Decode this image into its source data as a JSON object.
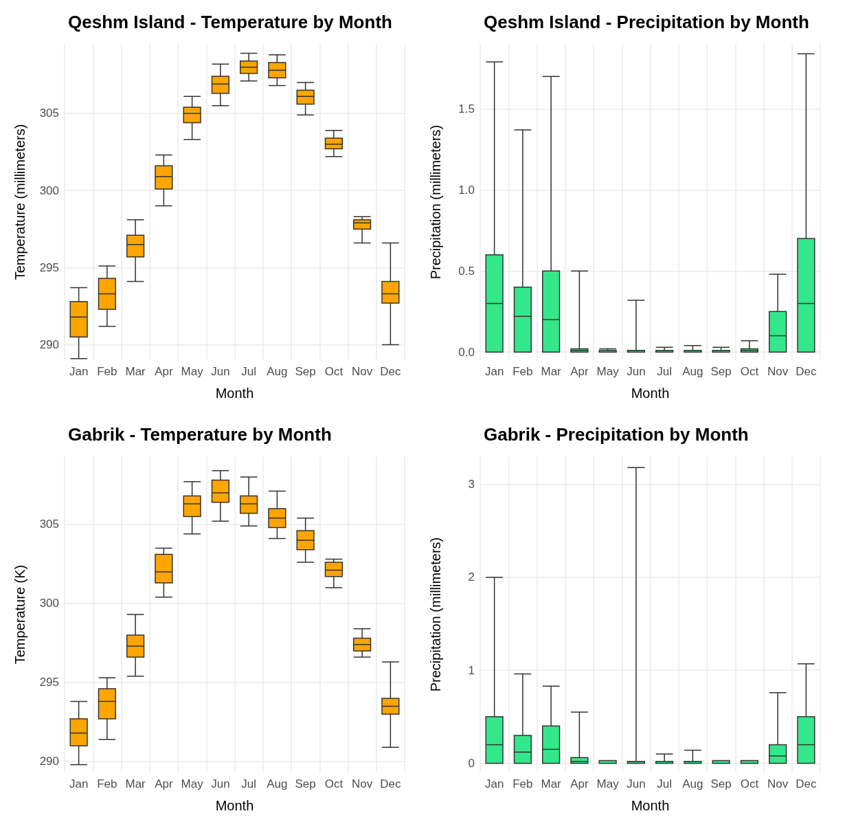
{
  "chart_data": [
    {
      "type": "box",
      "title": "Qeshm Island - Temperature by Month",
      "xlabel": "Month",
      "ylabel": "Temperature (millimeters)",
      "categories": [
        "Jan",
        "Feb",
        "Mar",
        "Apr",
        "May",
        "Jun",
        "Jul",
        "Aug",
        "Sep",
        "Oct",
        "Nov",
        "Dec"
      ],
      "color": "#ffa500",
      "ylim": [
        289,
        309.5
      ],
      "yticks": [
        290,
        295,
        300,
        305
      ],
      "grid": true,
      "legend": false,
      "boxes": [
        {
          "low": 289.1,
          "q1": 290.5,
          "median": 291.8,
          "q3": 292.8,
          "high": 293.7
        },
        {
          "low": 291.2,
          "q1": 292.3,
          "median": 293.3,
          "q3": 294.3,
          "high": 295.1
        },
        {
          "low": 294.1,
          "q1": 295.7,
          "median": 296.5,
          "q3": 297.1,
          "high": 298.1
        },
        {
          "low": 299,
          "q1": 300.1,
          "median": 300.9,
          "q3": 301.6,
          "high": 302.3
        },
        {
          "low": 303.3,
          "q1": 304.4,
          "median": 305,
          "q3": 305.4,
          "high": 306.1
        },
        {
          "low": 305.5,
          "q1": 306.3,
          "median": 306.9,
          "q3": 307.4,
          "high": 308.2
        },
        {
          "low": 307.1,
          "q1": 307.6,
          "median": 308,
          "q3": 308.4,
          "high": 308.9
        },
        {
          "low": 306.8,
          "q1": 307.3,
          "median": 307.8,
          "q3": 308.3,
          "high": 308.8
        },
        {
          "low": 304.9,
          "q1": 305.6,
          "median": 306.1,
          "q3": 306.5,
          "high": 307
        },
        {
          "low": 302.2,
          "q1": 302.7,
          "median": 303,
          "q3": 303.4,
          "high": 303.9
        },
        {
          "low": 296.6,
          "q1": 297.5,
          "median": 297.9,
          "q3": 298.1,
          "high": 298.3
        },
        {
          "low": 290,
          "q1": 292.7,
          "median": 293.3,
          "q3": 294.1,
          "high": 296.6
        }
      ]
    },
    {
      "type": "box",
      "title": "Qeshm Island - Precipitation by Month",
      "xlabel": "Month",
      "ylabel": "Precipitation (millimeters)",
      "categories": [
        "Jan",
        "Feb",
        "Mar",
        "Apr",
        "May",
        "Jun",
        "Jul",
        "Aug",
        "Sep",
        "Oct",
        "Nov",
        "Dec"
      ],
      "color": "#33e88a",
      "ylim": [
        -0.05,
        1.9
      ],
      "yticks": [
        {
          "value": 0,
          "label": "0.0"
        },
        0.5,
        {
          "value": 1,
          "label": "1.0"
        },
        1.5
      ],
      "grid": true,
      "legend": false,
      "boxes": [
        {
          "low": 0,
          "q1": 0,
          "median": 0.3,
          "q3": 0.6,
          "high": 1.79
        },
        {
          "low": 0,
          "q1": 0,
          "median": 0.22,
          "q3": 0.4,
          "high": 1.37
        },
        {
          "low": 0,
          "q1": 0,
          "median": 0.2,
          "q3": 0.5,
          "high": 1.7
        },
        {
          "low": 0,
          "q1": 0,
          "median": 0.01,
          "q3": 0.02,
          "high": 0.5
        },
        {
          "low": 0,
          "q1": 0,
          "median": 0,
          "q3": 0.01,
          "high": 0.02
        },
        {
          "low": 0,
          "q1": 0,
          "median": 0,
          "q3": 0.01,
          "high": 0.32
        },
        {
          "low": 0,
          "q1": 0,
          "median": 0,
          "q3": 0.01,
          "high": 0.03
        },
        {
          "low": 0,
          "q1": 0,
          "median": 0,
          "q3": 0.01,
          "high": 0.04
        },
        {
          "low": 0,
          "q1": 0,
          "median": 0,
          "q3": 0.01,
          "high": 0.03
        },
        {
          "low": 0,
          "q1": 0,
          "median": 0.01,
          "q3": 0.02,
          "high": 0.07
        },
        {
          "low": 0,
          "q1": 0,
          "median": 0.1,
          "q3": 0.25,
          "high": 0.48
        },
        {
          "low": 0,
          "q1": 0,
          "median": 0.3,
          "q3": 0.7,
          "high": 1.84
        }
      ]
    },
    {
      "type": "box",
      "title": "Gabrik - Temperature by Month",
      "xlabel": "Month",
      "ylabel": "Temperature (K)",
      "categories": [
        "Jan",
        "Feb",
        "Mar",
        "Apr",
        "May",
        "Jun",
        "Jul",
        "Aug",
        "Sep",
        "Oct",
        "Nov",
        "Dec"
      ],
      "color": "#ffa500",
      "ylim": [
        289.3,
        309.3
      ],
      "yticks": [
        290,
        295,
        300,
        305
      ],
      "grid": true,
      "legend": false,
      "boxes": [
        {
          "low": 289.8,
          "q1": 291,
          "median": 291.8,
          "q3": 292.7,
          "high": 293.8
        },
        {
          "low": 291.4,
          "q1": 292.7,
          "median": 293.8,
          "q3": 294.6,
          "high": 295.3
        },
        {
          "low": 295.4,
          "q1": 296.6,
          "median": 297.3,
          "q3": 298,
          "high": 299.3
        },
        {
          "low": 300.4,
          "q1": 301.3,
          "median": 302,
          "q3": 303.1,
          "high": 303.5
        },
        {
          "low": 304.4,
          "q1": 305.5,
          "median": 306.3,
          "q3": 306.8,
          "high": 307.7
        },
        {
          "low": 305.2,
          "q1": 306.4,
          "median": 307,
          "q3": 307.8,
          "high": 308.4
        },
        {
          "low": 304.9,
          "q1": 305.7,
          "median": 306.3,
          "q3": 306.8,
          "high": 308
        },
        {
          "low": 304.1,
          "q1": 304.8,
          "median": 305.4,
          "q3": 306,
          "high": 307.1
        },
        {
          "low": 302.6,
          "q1": 303.4,
          "median": 304,
          "q3": 304.6,
          "high": 305.4
        },
        {
          "low": 301,
          "q1": 301.7,
          "median": 302.1,
          "q3": 302.6,
          "high": 302.8
        },
        {
          "low": 296.6,
          "q1": 297,
          "median": 297.4,
          "q3": 297.8,
          "high": 298.4
        },
        {
          "low": 290.9,
          "q1": 293,
          "median": 293.5,
          "q3": 294,
          "high": 296.3
        }
      ]
    },
    {
      "type": "box",
      "title": "Gabrik - Precipitation by Month",
      "xlabel": "Month",
      "ylabel": "Precipitation (millimeters)",
      "categories": [
        "Jan",
        "Feb",
        "Mar",
        "Apr",
        "May",
        "Jun",
        "Jul",
        "Aug",
        "Sep",
        "Oct",
        "Nov",
        "Dec"
      ],
      "color": "#33e88a",
      "ylim": [
        -0.1,
        3.3
      ],
      "yticks": [
        0,
        1,
        2,
        3
      ],
      "grid": true,
      "legend": false,
      "boxes": [
        {
          "low": 0,
          "q1": 0,
          "median": 0.2,
          "q3": 0.5,
          "high": 2
        },
        {
          "low": 0,
          "q1": 0,
          "median": 0.12,
          "q3": 0.3,
          "high": 0.96
        },
        {
          "low": 0,
          "q1": 0,
          "median": 0.15,
          "q3": 0.4,
          "high": 0.83
        },
        {
          "low": 0,
          "q1": 0,
          "median": 0.02,
          "q3": 0.06,
          "high": 0.55
        },
        {
          "low": 0,
          "q1": 0,
          "median": 0,
          "q3": 0.03,
          "high": 0.03
        },
        {
          "low": 0,
          "q1": 0,
          "median": 0,
          "q3": 0.02,
          "high": 3.18
        },
        {
          "low": 0,
          "q1": 0,
          "median": 0,
          "q3": 0.02,
          "high": 0.1
        },
        {
          "low": 0,
          "q1": 0,
          "median": 0,
          "q3": 0.02,
          "high": 0.14
        },
        {
          "low": 0,
          "q1": 0,
          "median": 0,
          "q3": 0.03,
          "high": 0.03
        },
        {
          "low": 0,
          "q1": 0,
          "median": 0,
          "q3": 0.03,
          "high": 0.03
        },
        {
          "low": 0,
          "q1": 0,
          "median": 0.08,
          "q3": 0.2,
          "high": 0.76
        },
        {
          "low": 0,
          "q1": 0,
          "median": 0.2,
          "q3": 0.5,
          "high": 1.07
        }
      ]
    }
  ]
}
